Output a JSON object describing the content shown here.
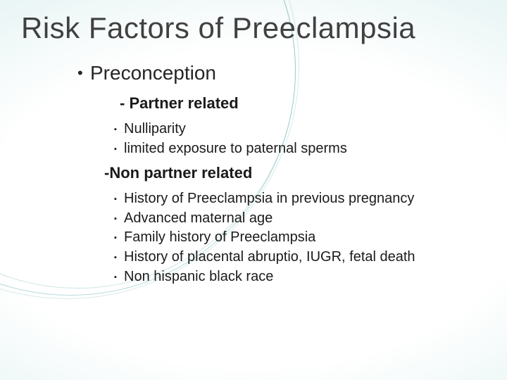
{
  "background": {
    "gradient_inner": "#ffffff",
    "gradient_outer": "#c8e6e5",
    "swoosh_color": "rgba(100,170,170,0.45)"
  },
  "title": {
    "text": "Risk Factors of Preeclampsia",
    "color": "#404040",
    "fontsize": 42,
    "weight": 400
  },
  "text_color": "#1a1a1a",
  "body": {
    "preconception": {
      "label": "Preconception",
      "fontsize": 28,
      "bullet": "•",
      "partner_related": {
        "label": "- Partner related",
        "fontsize": 22,
        "weight": 700,
        "items": [
          "Nulliparity",
          "limited exposure to paternal sperms"
        ]
      },
      "non_partner_related": {
        "label": "-Non partner related",
        "fontsize": 22,
        "weight": 700,
        "items": [
          "History of Preeclampsia in previous pregnancy",
          "Advanced maternal age",
          "Family history of Preeclampsia",
          "History of placental abruptio, IUGR, fetal death",
          "Non hispanic black race"
        ]
      },
      "sub_bullet": "▪",
      "sub_fontsize": 20
    }
  }
}
